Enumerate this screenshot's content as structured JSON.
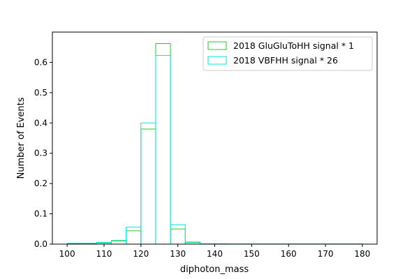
{
  "chart_data": {
    "type": "histogram-step",
    "xlabel": "diphoton_mass",
    "ylabel": "Number of Events",
    "xlim": [
      96,
      184
    ],
    "ylim": [
      0,
      0.7
    ],
    "x_ticks": [
      100,
      110,
      120,
      130,
      140,
      150,
      160,
      170,
      180
    ],
    "y_ticks": [
      0.0,
      0.1,
      0.2,
      0.3,
      0.4,
      0.5,
      0.6
    ],
    "y_tick_labels": [
      "0.0",
      "0.1",
      "0.2",
      "0.3",
      "0.4",
      "0.5",
      "0.6"
    ],
    "bin_edges": [
      100,
      104,
      108,
      112,
      116,
      120,
      124,
      128,
      132,
      136,
      140,
      144,
      148,
      152,
      156,
      160,
      164,
      168,
      172,
      176,
      180
    ],
    "series": [
      {
        "name": "2018 GluGluToHH signal * 1",
        "color": "#22cc22",
        "values": [
          0.002,
          0.002,
          0.004,
          0.012,
          0.044,
          0.38,
          0.662,
          0.05,
          0.005,
          0.001,
          0.001,
          0.0005,
          0.0005,
          0.0005,
          0.0005,
          0.0005,
          0.0005,
          0.0005,
          0.0005,
          0.0005
        ]
      },
      {
        "name": "2018 VBFHH signal * 26",
        "color": "#00e5e5",
        "values": [
          0.003,
          0.003,
          0.006,
          0.01,
          0.056,
          0.4,
          0.623,
          0.064,
          0.007,
          0.001,
          0.001,
          0.0005,
          0.0005,
          0.0005,
          0.0005,
          0.0005,
          0.0005,
          0.0005,
          0.0005,
          0.0005
        ]
      }
    ],
    "legend_position": "top-right",
    "grid": false
  }
}
